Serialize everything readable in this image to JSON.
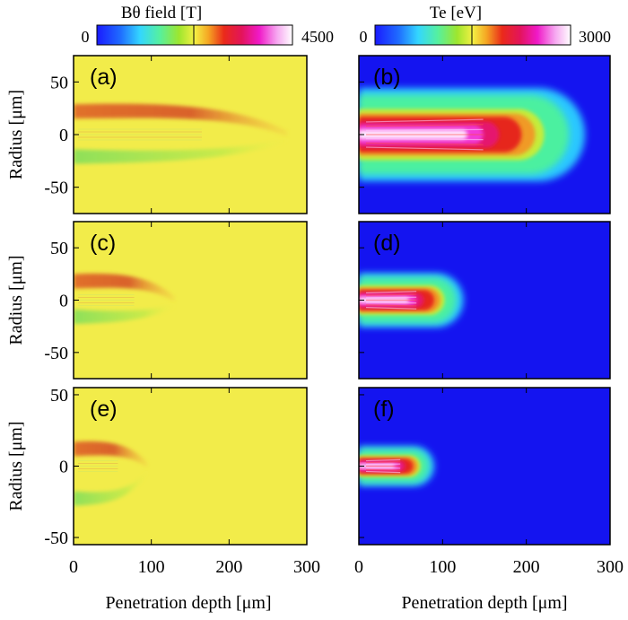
{
  "chart_data": [
    {
      "type": "heatmap",
      "panels": [
        "(a)",
        "(c)",
        "(e)"
      ],
      "colorbar": {
        "title": "Bθ field  [T]",
        "min_label": "0",
        "max_label": "4500",
        "range": [
          0,
          4500
        ]
      },
      "xlabel": "Penetration depth [μm]",
      "ylabel": "Radius [μm]",
      "xlim": [
        0,
        300
      ],
      "xticks": [
        "0",
        "100",
        "200",
        "300"
      ],
      "ylims": [
        [
          -75,
          75
        ],
        [
          -75,
          75
        ],
        [
          -55,
          55
        ]
      ],
      "yticks": [
        [
          "50",
          "0",
          "-50"
        ],
        [
          "50",
          "0",
          "-50"
        ],
        [
          "50",
          "0",
          "-50"
        ]
      ],
      "channel_lengths": [
        275,
        130,
        95
      ]
    },
    {
      "type": "heatmap",
      "panels": [
        "(b)",
        "(d)",
        "(f)"
      ],
      "colorbar": {
        "title": "Te [eV]",
        "min_label": "0",
        "max_label": "3000",
        "range": [
          0,
          3000
        ]
      },
      "xlabel": "Penetration depth [μm]",
      "xlim": [
        0,
        300
      ],
      "xticks": [
        "0",
        "100",
        "200",
        "300"
      ],
      "ylims": [
        [
          -75,
          75
        ],
        [
          -75,
          75
        ],
        [
          -55,
          55
        ]
      ],
      "heated_lengths": [
        270,
        125,
        90
      ]
    }
  ]
}
